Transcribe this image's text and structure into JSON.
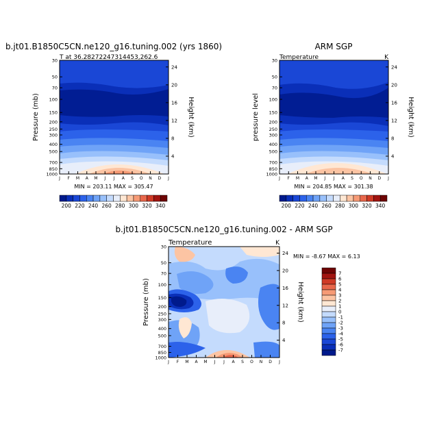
{
  "palette": {
    "temp_colors": [
      "#001a8c",
      "#0a2fb8",
      "#1a47d6",
      "#2c62ea",
      "#4a84f2",
      "#6fa3f7",
      "#98c0fb",
      "#c4dbfd",
      "#e8eefa",
      "#ffe7d3",
      "#fcc4a3",
      "#f69a75",
      "#e8674b",
      "#cf3a26",
      "#a11410",
      "#6e0404"
    ],
    "diff_colors": [
      "#001a8c",
      "#0a2fb8",
      "#1a47d6",
      "#2c62ea",
      "#4a84f2",
      "#6fa3f7",
      "#98c0fb",
      "#c4dbfd",
      "#e8eefa",
      "#ffe7d3",
      "#fcc4a3",
      "#f69a75",
      "#e8674b",
      "#cf3a26",
      "#a11410",
      "#6e0404"
    ]
  },
  "chart_data": [
    {
      "type": "heatmap",
      "title": "b.jt01.B1850C5CN.ne120_g16.tuning.002 (yrs 1860)",
      "subtitle_left": "T at 36.28272247314453,262.6",
      "subtitle_right": "",
      "ylabel": "Pressure (mb)",
      "y2label": "Height (km)",
      "x_ticks": [
        "J",
        "F",
        "M",
        "A",
        "M",
        "J",
        "J",
        "A",
        "S",
        "O",
        "N",
        "D",
        "J"
      ],
      "p_ticks": [
        "30",
        "50",
        "70",
        "100",
        "150",
        "200",
        "250",
        "300",
        "400",
        "500",
        "700",
        "850",
        "1000"
      ],
      "h_ticks": [
        "24",
        "20",
        "16",
        "12",
        "8",
        "4"
      ],
      "stats": "MIN = 203.11 MAX = 305.47",
      "colorbar": {
        "ticks": [
          "200",
          "220",
          "240",
          "260",
          "280",
          "300",
          "320",
          "340"
        ]
      }
    },
    {
      "type": "heatmap",
      "title": "ARM SGP",
      "subtitle_left": "Temperature",
      "subtitle_right": "K",
      "ylabel": "pressure level",
      "y2label": "Height (km)",
      "x_ticks": [
        "J",
        "F",
        "M",
        "A",
        "M",
        "J",
        "J",
        "A",
        "S",
        "O",
        "N",
        "D",
        "J"
      ],
      "p_ticks": [
        "30",
        "50",
        "70",
        "100",
        "150",
        "200",
        "250",
        "300",
        "400",
        "500",
        "700",
        "850",
        "1000"
      ],
      "h_ticks": [
        "24",
        "20",
        "16",
        "12",
        "8",
        "4"
      ],
      "stats": "MIN = 204.85 MAX = 301.38",
      "colorbar": {
        "ticks": [
          "200",
          "220",
          "240",
          "260",
          "280",
          "300",
          "320",
          "340"
        ]
      }
    },
    {
      "type": "heatmap",
      "title": "b.jt01.B1850C5CN.ne120_g16.tuning.002 - ARM SGP",
      "subtitle_left": "Temperature",
      "subtitle_right": "K",
      "ylabel": "Pressure (mb)",
      "y2label": "Height (km)",
      "x_ticks": [
        "J",
        "F",
        "M",
        "A",
        "M",
        "J",
        "J",
        "A",
        "S",
        "O",
        "N",
        "D",
        "J"
      ],
      "p_ticks": [
        "30",
        "50",
        "70",
        "100",
        "150",
        "200",
        "250",
        "300",
        "400",
        "500",
        "700",
        "850",
        "1000"
      ],
      "h_ticks": [
        "24",
        "20",
        "16",
        "12",
        "8",
        "4"
      ],
      "stats": "MIN = -8.67 MAX = 6.13",
      "colorbar": {
        "ticks": [
          "7",
          "6",
          "5",
          "4",
          "3",
          "2",
          "1",
          "0",
          "-1",
          "-2",
          "-3",
          "-4",
          "-5",
          "-6",
          "-7"
        ]
      }
    }
  ]
}
